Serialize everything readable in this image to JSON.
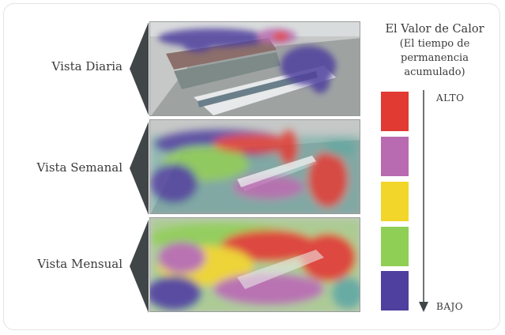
{
  "views": [
    {
      "label": "Vista Diaria"
    },
    {
      "label": "Vista Semanal"
    },
    {
      "label": "Vista Mensual"
    }
  ],
  "legend": {
    "title": "El Valor de Calor",
    "subtitle_lines": [
      "(El tiempo de",
      "permanencia",
      "acumulado)"
    ],
    "high_label": "ALTO",
    "low_label": "BAJO",
    "levels": [
      {
        "color": "#e03a33"
      },
      {
        "color": "#b86bb0"
      },
      {
        "color": "#f2d62a"
      },
      {
        "color": "#8fcf55"
      },
      {
        "color": "#4f3f9e"
      }
    ]
  }
}
